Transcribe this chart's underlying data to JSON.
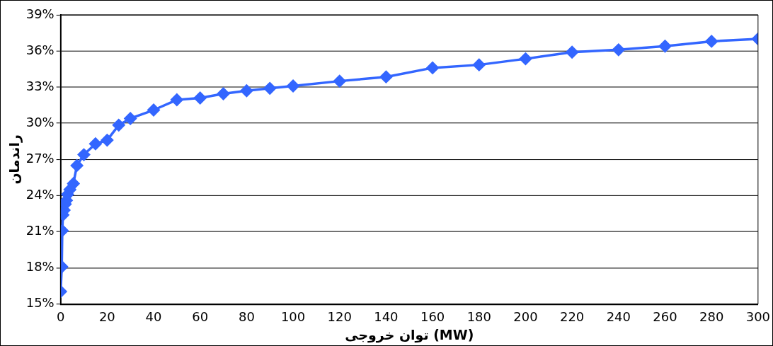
{
  "chart_data": {
    "type": "line",
    "xlabel": "توان خروجی (MW)",
    "ylabel": "راندمان",
    "x": [
      0,
      0.5,
      0.7,
      1,
      1.5,
      2,
      2.5,
      3,
      4,
      5.5,
      7,
      10,
      15,
      20,
      25,
      30,
      40,
      50,
      60,
      70,
      80,
      90,
      100,
      120,
      140,
      160,
      180,
      200,
      220,
      240,
      260,
      280,
      300
    ],
    "series": [
      {
        "color": "#3366ff",
        "values": [
          16.05,
          18.1,
          21.1,
          22.4,
          22.8,
          23.3,
          23.6,
          24.1,
          24.5,
          25.0,
          26.5,
          27.4,
          28.3,
          28.6,
          29.85,
          30.4,
          31.1,
          31.95,
          32.1,
          32.45,
          32.7,
          32.9,
          33.1,
          33.5,
          33.85,
          34.6,
          34.85,
          35.35,
          35.9,
          36.1,
          36.4,
          36.8,
          37.0
        ]
      }
    ],
    "xlim": [
      0,
      300
    ],
    "xticks": [
      0,
      20,
      40,
      60,
      80,
      100,
      120,
      140,
      160,
      180,
      200,
      220,
      240,
      260,
      280,
      300
    ],
    "ylim": [
      15,
      39
    ],
    "yticks": [
      {
        "value": 15,
        "label": "15%"
      },
      {
        "value": 18,
        "label": "18%"
      },
      {
        "value": 21,
        "label": "21%"
      },
      {
        "value": 24,
        "label": "24%"
      },
      {
        "value": 27,
        "label": "27%"
      },
      {
        "value": 30,
        "label": "30%"
      },
      {
        "value": 33,
        "label": "33%"
      },
      {
        "value": 36,
        "label": "36%"
      },
      {
        "value": 39,
        "label": "39%"
      }
    ],
    "grid": "y",
    "legend": false,
    "marker": "diamond",
    "line_style": "solid"
  }
}
